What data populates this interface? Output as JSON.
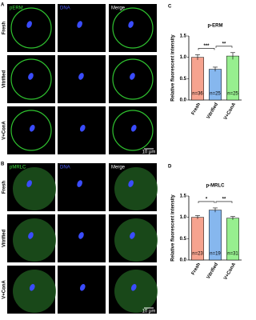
{
  "figure": {
    "panels": [
      {
        "letter": "A",
        "columns": [
          "pERM",
          "DNA",
          "Merge"
        ],
        "rows": [
          "Fresh",
          "Vitrified",
          "V+ConA"
        ],
        "scale_bar": "10 μm"
      },
      {
        "letter": "B",
        "columns": [
          "pMRLC",
          "DNA",
          "Merge"
        ],
        "rows": [
          "Fresh",
          "Vitrified",
          "V+ConA"
        ],
        "scale_bar": "10 μm"
      }
    ]
  },
  "chart_data": [
    {
      "type": "bar",
      "panel": "C",
      "title": "p-ERM",
      "ylabel": "Relative fluorescent intensity",
      "categories": [
        "Fresh",
        "Vitrified",
        "V+ConA"
      ],
      "values": [
        1.0,
        0.72,
        1.03
      ],
      "errors": [
        0.06,
        0.05,
        0.08
      ],
      "colors": [
        "#f6a38f",
        "#86b7ee",
        "#97ef8f"
      ],
      "n_labels": [
        "n=36",
        "n=25",
        "n=25"
      ],
      "ylim": [
        0,
        1.5
      ],
      "yticks": [
        {
          "value": 0,
          "label": "0.0"
        },
        0.5,
        {
          "value": 1,
          "label": "1.0"
        },
        1.5
      ],
      "annotations": [
        {
          "text": "***",
          "from": "Fresh",
          "to": "Vitrified"
        },
        {
          "text": "**",
          "from": "Vitrified",
          "to": "V+ConA"
        }
      ]
    },
    {
      "type": "bar",
      "panel": "D",
      "title": "p-MRLC",
      "ylabel": "Relative fluorescent intensity",
      "categories": [
        "Fresh",
        "Vitrified",
        "V+ConA"
      ],
      "values": [
        1.0,
        1.17,
        0.98
      ],
      "errors": [
        0.04,
        0.05,
        0.04
      ],
      "colors": [
        "#f6a38f",
        "#86b7ee",
        "#97ef8f"
      ],
      "n_labels": [
        "n=23",
        "n=19",
        "n=31"
      ],
      "ylim": [
        0,
        1.5
      ],
      "yticks": [
        {
          "value": 0,
          "label": "0.0"
        },
        0.5,
        {
          "value": 1,
          "label": "1.0"
        },
        1.5
      ],
      "annotations": [
        {
          "text": "*",
          "from": "Fresh",
          "to": "Vitrified"
        },
        {
          "text": "**",
          "from": "Vitrified",
          "to": "V+ConA"
        }
      ]
    }
  ]
}
